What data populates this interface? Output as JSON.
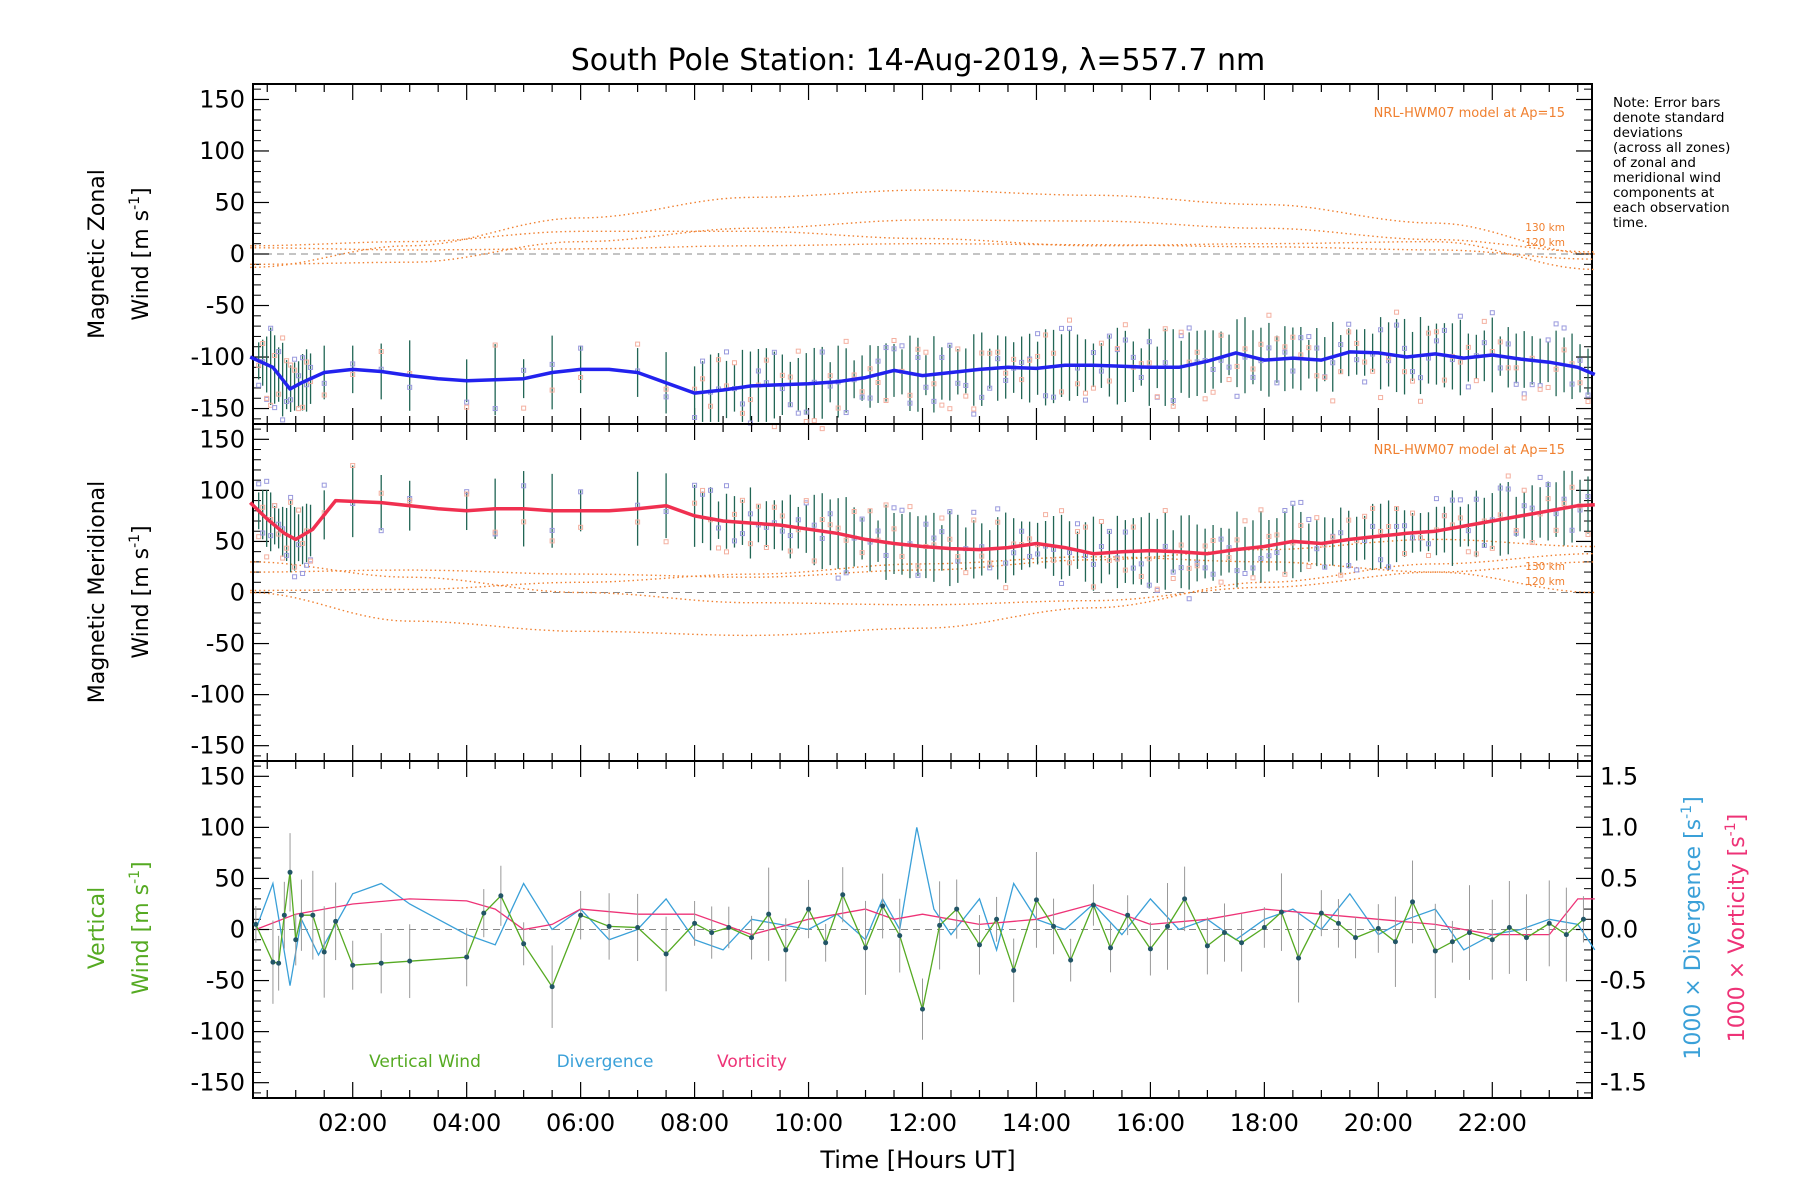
{
  "chart_data": {
    "type": "line",
    "title": "South Pole Station: 14-Aug-2019, λ=557.7 nm",
    "xlabel": "Time [Hours UT]",
    "xlim": [
      0.25,
      23.75
    ],
    "xticks": [
      "02:00",
      "04:00",
      "06:00",
      "08:00",
      "10:00",
      "12:00",
      "14:00",
      "16:00",
      "18:00",
      "20:00",
      "22:00"
    ],
    "xtick_hours": [
      2,
      4,
      6,
      8,
      10,
      12,
      14,
      16,
      18,
      20,
      22
    ],
    "note": "Note: Error bars\ndenote standard\ndeviations\n(across all zones)\nof zonal and\nmeridional wind\ncomponents at\neach observation\ntime.",
    "colors": {
      "zonal": "#2222ee",
      "meridional": "#f03050",
      "model": "#f08030",
      "vertical": "#55aa22",
      "divergence": "#3aa0d8",
      "vorticity": "#ee3377",
      "scatter": "#9999dd"
    },
    "panels": [
      {
        "name": "zonal",
        "ylabel_line1": "Magnetic Zonal",
        "ylabel_line2": "Wind [m s",
        "ylabel_sup": "-1",
        "ylabel_close": "]",
        "ylim": [
          -165,
          165
        ],
        "yticks": [
          150,
          100,
          50,
          0,
          -50,
          -100,
          -150
        ],
        "model_label": "NRL-HWM07 model at Ap=15",
        "model_km_labels": [
          "130 km",
          "120 km"
        ],
        "series": [
          {
            "name": "Zonal wind",
            "x": [
              0.2,
              0.6,
              0.9,
              1.1,
              1.5,
              2.0,
              2.5,
              3.0,
              3.5,
              4.0,
              4.5,
              5.0,
              5.5,
              6.0,
              6.5,
              7.0,
              7.5,
              8.0,
              8.5,
              9.0,
              9.5,
              10.0,
              10.5,
              11.0,
              11.5,
              12.0,
              12.5,
              13.0,
              13.5,
              14.0,
              14.5,
              15.0,
              15.5,
              16.0,
              16.5,
              17.0,
              17.5,
              18.0,
              18.5,
              19.0,
              19.5,
              20.0,
              20.5,
              21.0,
              21.5,
              22.0,
              22.5,
              23.0,
              23.5,
              23.8
            ],
            "values": [
              -100,
              -110,
              -131,
              -125,
              -115,
              -112,
              -114,
              -118,
              -121,
              -123,
              -122,
              -121,
              -115,
              -112,
              -112,
              -115,
              -125,
              -135,
              -132,
              -128,
              -127,
              -126,
              -124,
              -120,
              -113,
              -118,
              -115,
              -112,
              -110,
              -111,
              -108,
              -108,
              -109,
              -110,
              -110,
              -104,
              -96,
              -103,
              -101,
              -103,
              -95,
              -96,
              -100,
              -97,
              -101,
              -98,
              -102,
              -105,
              -110,
              -117
            ]
          }
        ],
        "model_curves": [
          {
            "x": [
              0.2,
              3,
              6,
              9,
              12,
              15,
              18,
              21,
              23.8
            ],
            "values": [
              -13,
              8,
              35,
              55,
              62,
              57,
              48,
              30,
              0
            ]
          },
          {
            "x": [
              0.2,
              3,
              6,
              9,
              12,
              15,
              18,
              21,
              23.8
            ],
            "values": [
              -10,
              -8,
              12,
              25,
              33,
              32,
              25,
              14,
              2
            ]
          },
          {
            "x": [
              0.2,
              3,
              6,
              9,
              12,
              15,
              18,
              21,
              23.8
            ],
            "values": [
              8,
              12,
              22,
              22,
              15,
              8,
              10,
              12,
              -15
            ]
          },
          {
            "x": [
              0.2,
              3,
              6,
              9,
              12,
              15,
              18,
              21,
              23.8
            ],
            "values": [
              6,
              4,
              5,
              8,
              10,
              9,
              7,
              4,
              -5
            ]
          }
        ]
      },
      {
        "name": "meridional",
        "ylabel_line1": "Magnetic Meridional",
        "ylabel_line2": "Wind [m s",
        "ylabel_sup": "-1",
        "ylabel_close": "]",
        "ylim": [
          -165,
          165
        ],
        "yticks": [
          150,
          100,
          50,
          0,
          -50,
          -100,
          -150
        ],
        "model_label": "NRL-HWM07 model at Ap=15",
        "model_km_labels": [
          "130 km",
          "120 km"
        ],
        "series": [
          {
            "name": "Meridional wind",
            "x": [
              0.2,
              0.5,
              0.8,
              1.0,
              1.3,
              1.7,
              2.5,
              3.5,
              4.0,
              4.5,
              5.0,
              5.5,
              6.0,
              6.5,
              7.0,
              7.5,
              8.0,
              8.5,
              9.0,
              9.5,
              10.0,
              10.5,
              11.0,
              11.5,
              12.0,
              12.5,
              13.0,
              13.5,
              14.0,
              14.5,
              15.0,
              15.5,
              16.0,
              16.5,
              17.0,
              17.5,
              18.0,
              18.5,
              19.0,
              19.5,
              20.0,
              20.5,
              21.0,
              21.5,
              22.0,
              22.5,
              23.0,
              23.5,
              23.8
            ],
            "values": [
              88,
              72,
              58,
              52,
              62,
              90,
              88,
              82,
              80,
              82,
              82,
              80,
              80,
              80,
              82,
              85,
              75,
              70,
              68,
              66,
              62,
              58,
              52,
              48,
              45,
              43,
              42,
              44,
              48,
              44,
              38,
              40,
              41,
              40,
              38,
              42,
              45,
              50,
              48,
              52,
              55,
              58,
              60,
              65,
              70,
              75,
              80,
              85,
              86
            ]
          }
        ],
        "model_curves": [
          {
            "x": [
              0.2,
              3,
              6,
              9,
              12,
              15,
              18,
              21,
              23.8
            ],
            "values": [
              30,
              15,
              0,
              -10,
              -12,
              -8,
              5,
              20,
              30
            ]
          },
          {
            "x": [
              0.2,
              3,
              6,
              9,
              12,
              15,
              18,
              21,
              23.8
            ],
            "values": [
              20,
              22,
              18,
              15,
              22,
              32,
              42,
              52,
              45
            ]
          },
          {
            "x": [
              0.2,
              3,
              6,
              9,
              12,
              15,
              18,
              21,
              23.8
            ],
            "values": [
              0,
              -28,
              -38,
              -42,
              -35,
              -15,
              10,
              28,
              38
            ]
          },
          {
            "x": [
              0.2,
              3,
              6,
              9,
              12,
              15,
              18,
              21,
              23.8
            ],
            "values": [
              2,
              3,
              10,
              18,
              28,
              35,
              30,
              20,
              0
            ]
          }
        ]
      },
      {
        "name": "vertical",
        "ylabel_line1": "Vertical",
        "ylabel_line2": "Wind [m s",
        "ylabel_sup": "-1",
        "ylabel_close": "]",
        "ylim": [
          -165,
          165
        ],
        "yticks": [
          150,
          100,
          50,
          0,
          -50,
          -100,
          -150
        ],
        "right_ylim": [
          -1.65,
          1.65
        ],
        "right_yticks": [
          1.5,
          1.0,
          0.5,
          0.0,
          -0.5,
          -1.0,
          -1.5
        ],
        "right_ylabel_div": "1000 × Divergence [s",
        "right_ylabel_vor": "1000 × Vorticity [s",
        "right_ylabel_sup": "-1",
        "right_ylabel_close": "]",
        "legend": [
          "Vertical Wind",
          "Divergence",
          "Vorticity"
        ],
        "series": [
          {
            "name": "Vertical Wind",
            "x": [
              0.3,
              0.6,
              0.7,
              0.8,
              0.9,
              1.0,
              1.1,
              1.3,
              1.5,
              1.7,
              2.0,
              2.5,
              3.0,
              4.0,
              4.3,
              4.6,
              5.0,
              5.5,
              6.0,
              6.5,
              7.0,
              7.5,
              8.0,
              8.3,
              8.6,
              9.0,
              9.3,
              9.6,
              10.0,
              10.3,
              10.6,
              11.0,
              11.3,
              11.6,
              12.0,
              12.3,
              12.6,
              13.0,
              13.3,
              13.6,
              14.0,
              14.3,
              14.6,
              15.0,
              15.3,
              15.6,
              16.0,
              16.3,
              16.6,
              17.0,
              17.3,
              17.6,
              18.0,
              18.3,
              18.6,
              19.0,
              19.3,
              19.6,
              20.0,
              20.3,
              20.6,
              21.0,
              21.3,
              21.6,
              22.0,
              22.3,
              22.6,
              23.0,
              23.3,
              23.6
            ],
            "values": [
              5,
              -32,
              -33,
              14,
              56,
              -10,
              14,
              14,
              -22,
              8,
              -35,
              -33,
              -31,
              -27,
              16,
              33,
              -14,
              -56,
              14,
              3,
              2,
              -24,
              6,
              -3,
              2,
              -8,
              15,
              -20,
              20,
              -13,
              34,
              -18,
              23,
              -6,
              -78,
              4,
              20,
              -15,
              10,
              -40,
              29,
              3,
              -30,
              24,
              -18,
              14,
              -19,
              3,
              30,
              -16,
              -3,
              -13,
              2,
              17,
              -28,
              16,
              6,
              -8,
              1,
              -12,
              27,
              -21,
              -12,
              -3,
              -10,
              2,
              -8,
              6,
              -5,
              10
            ]
          },
          {
            "name": "Divergence",
            "axis": "right",
            "x": [
              0.3,
              0.6,
              0.9,
              1.1,
              1.4,
              2.0,
              2.5,
              3.0,
              3.5,
              4.0,
              4.5,
              5.0,
              5.5,
              6.0,
              6.5,
              7.0,
              7.5,
              8.0,
              8.5,
              9.0,
              9.5,
              10.0,
              10.5,
              11.0,
              11.3,
              11.6,
              11.9,
              12.2,
              12.5,
              13.0,
              13.3,
              13.6,
              14.0,
              14.5,
              15.0,
              15.5,
              16.0,
              16.5,
              17.0,
              17.5,
              18.0,
              18.5,
              19.0,
              19.5,
              20.0,
              20.5,
              21.0,
              21.5,
              22.0,
              22.5,
              23.0,
              23.5,
              23.8
            ],
            "values": [
              0.0,
              0.45,
              -0.55,
              0.1,
              -0.25,
              0.35,
              0.45,
              0.25,
              0.1,
              -0.05,
              -0.15,
              0.45,
              0.0,
              0.2,
              -0.1,
              0.0,
              0.3,
              -0.1,
              -0.2,
              0.1,
              0.05,
              0.0,
              0.15,
              -0.1,
              0.3,
              0.0,
              1.0,
              0.2,
              -0.05,
              0.3,
              -0.2,
              0.45,
              0.1,
              0.0,
              0.25,
              -0.05,
              0.3,
              0.0,
              0.1,
              -0.1,
              0.1,
              0.2,
              0.0,
              0.35,
              -0.05,
              0.1,
              0.2,
              -0.2,
              -0.05,
              0.0,
              0.1,
              0.05,
              -0.2
            ]
          },
          {
            "name": "Vorticity",
            "axis": "right",
            "x": [
              0.3,
              1.0,
              1.5,
              2.0,
              3.0,
              4.0,
              4.5,
              5.0,
              5.5,
              6.0,
              7.0,
              8.0,
              9.0,
              10.0,
              11.0,
              11.5,
              12.0,
              13.0,
              14.0,
              15.0,
              16.0,
              17.0,
              18.0,
              19.0,
              20.0,
              21.0,
              22.0,
              22.5,
              23.0,
              23.5,
              23.8
            ],
            "values": [
              0.0,
              0.15,
              0.2,
              0.25,
              0.3,
              0.28,
              0.2,
              0.0,
              0.05,
              0.2,
              0.15,
              0.15,
              -0.05,
              0.1,
              0.2,
              0.1,
              0.15,
              0.05,
              0.1,
              0.25,
              0.05,
              0.1,
              0.2,
              0.15,
              0.1,
              0.05,
              -0.05,
              -0.05,
              -0.05,
              0.3,
              0.3
            ]
          }
        ]
      }
    ]
  }
}
